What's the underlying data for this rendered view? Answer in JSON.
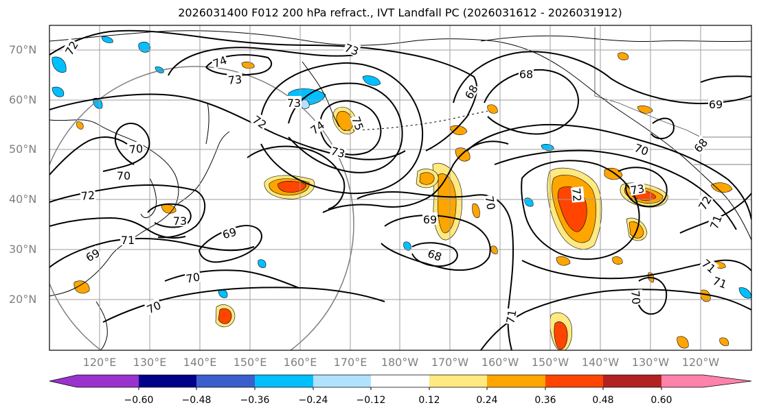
{
  "title": "2026031400 F012 200 hPa refract., IVT Landfall PC (2026031612 - 2026031912)",
  "lat_labels": [
    "70°N",
    "60°N",
    "50°N",
    "40°N",
    "30°N",
    "20°N"
  ],
  "lon_labels": [
    "120°E",
    "130°E",
    "140°E",
    "150°E",
    "160°E",
    "170°E",
    "180°W",
    "170°W",
    "160°W",
    "150°W",
    "140°W",
    "130°W",
    "120°W"
  ],
  "colorbar": {
    "ticks": [
      "−0.60",
      "−0.48",
      "−0.36",
      "−0.24",
      "−0.12",
      "0.12",
      "0.24",
      "0.36",
      "0.48",
      "0.60"
    ],
    "colors": [
      "#9a32cd",
      "#00008b",
      "#3a5fcd",
      "#00bfff",
      "#b0e2ff",
      "#ffffff",
      "#ffe980",
      "#ffa500",
      "#ff4500",
      "#b22222",
      "#ff82ab"
    ]
  },
  "contour_labels": [
    "72",
    "74",
    "73",
    "73",
    "73",
    "72",
    "74",
    "75",
    "73",
    "70",
    "70",
    "72",
    "73",
    "71",
    "69",
    "69",
    "70",
    "70",
    "71",
    "68",
    "68",
    "69",
    "68",
    "70",
    "70",
    "71",
    "72",
    "73",
    "71",
    "72",
    "71",
    "70",
    "69",
    "68"
  ]
}
